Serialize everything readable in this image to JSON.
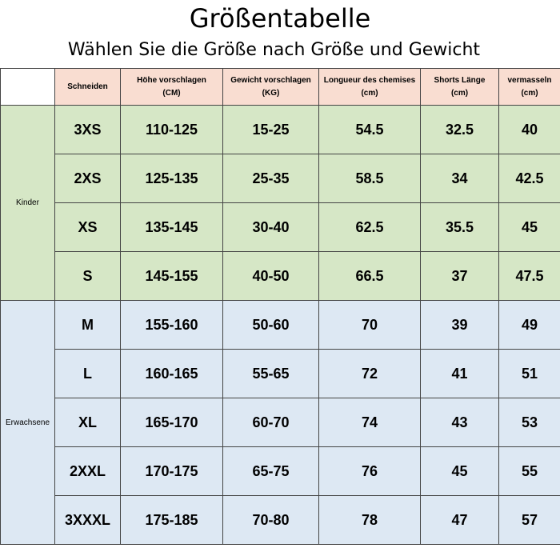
{
  "header": {
    "title": "Größentabelle",
    "subtitle": "Wählen Sie die Größe nach Größe und Gewicht"
  },
  "table": {
    "columns": [
      {
        "name": "Schneiden"
      },
      {
        "name": "Höhe vorschlagen",
        "unit": "(CM)"
      },
      {
        "name": "Gewicht vorschlagen",
        "unit": "(KG)"
      },
      {
        "name": "Longueur des chemises",
        "unit": "(cm)"
      },
      {
        "name": "Shorts Länge",
        "unit": "(cm)"
      },
      {
        "name": "vermasseln",
        "unit": "(cm)"
      }
    ],
    "groups": [
      {
        "label": "Kinder",
        "rows": [
          [
            "3XS",
            "110-125",
            "15-25",
            "54.5",
            "32.5",
            "40"
          ],
          [
            "2XS",
            "125-135",
            "25-35",
            "58.5",
            "34",
            "42.5"
          ],
          [
            "XS",
            "135-145",
            "30-40",
            "62.5",
            "35.5",
            "45"
          ],
          [
            "S",
            "145-155",
            "40-50",
            "66.5",
            "37",
            "47.5"
          ]
        ]
      },
      {
        "label": "Erwachsene",
        "rows": [
          [
            "M",
            "155-160",
            "50-60",
            "70",
            "39",
            "49"
          ],
          [
            "L",
            "160-165",
            "55-65",
            "72",
            "41",
            "51"
          ],
          [
            "XL",
            "165-170",
            "60-70",
            "74",
            "43",
            "53"
          ],
          [
            "2XXL",
            "170-175",
            "65-75",
            "76",
            "45",
            "55"
          ],
          [
            "3XXXL",
            "175-185",
            "70-80",
            "78",
            "47",
            "57"
          ]
        ]
      }
    ]
  }
}
